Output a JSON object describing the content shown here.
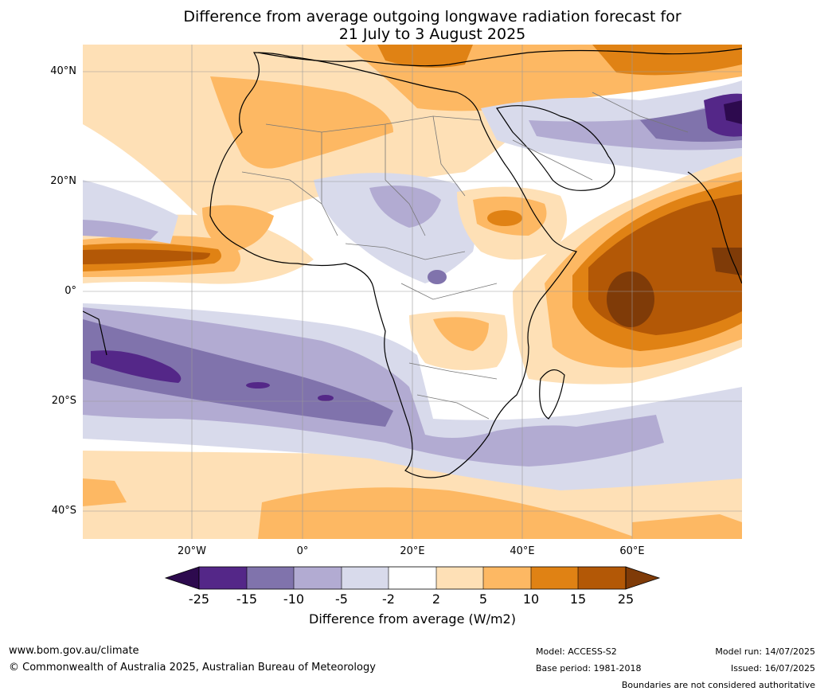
{
  "header": {
    "title_line1": "Difference from average outgoing longwave radiation forecast for",
    "title_line2": "21 July to 3 August 2025"
  },
  "map": {
    "lat_labels": [
      "40°N",
      "20°N",
      "0°",
      "20°S",
      "40°S"
    ],
    "lon_labels": [
      "20°W",
      "0°",
      "20°E",
      "40°E",
      "60°E"
    ],
    "region": "Africa and western Indian Ocean",
    "colors": {
      "lt_-25": "#2d0a4e",
      "-25_-15": "#542788",
      "-15_-10": "#8073ac",
      "-10_-5": "#b2abd2",
      "-5_-2": "#d8daeb",
      "-2_2": "#ffffff",
      "2_5": "#fee0b6",
      "5_10": "#fdb863",
      "10_15": "#e08214",
      "15_25": "#b35806",
      "gt_25": "#7f3b08"
    }
  },
  "colorbar": {
    "labels": [
      "-25",
      "-15",
      "-10",
      "-5",
      "-2",
      "2",
      "5",
      "10",
      "15",
      "25"
    ],
    "title": "Difference from average (W/m2)"
  },
  "footer": {
    "website": "www.bom.gov.au/climate",
    "copyright": "© Commonwealth of Australia 2025, Australian Bureau of Meteorology",
    "model": "Model: ACCESS-S2",
    "base_period": "Base period: 1981-2018",
    "model_run": "Model run: 14/07/2025",
    "issued": "Issued: 16/07/2025",
    "disclaimer": "Boundaries are not considered authoritative"
  }
}
